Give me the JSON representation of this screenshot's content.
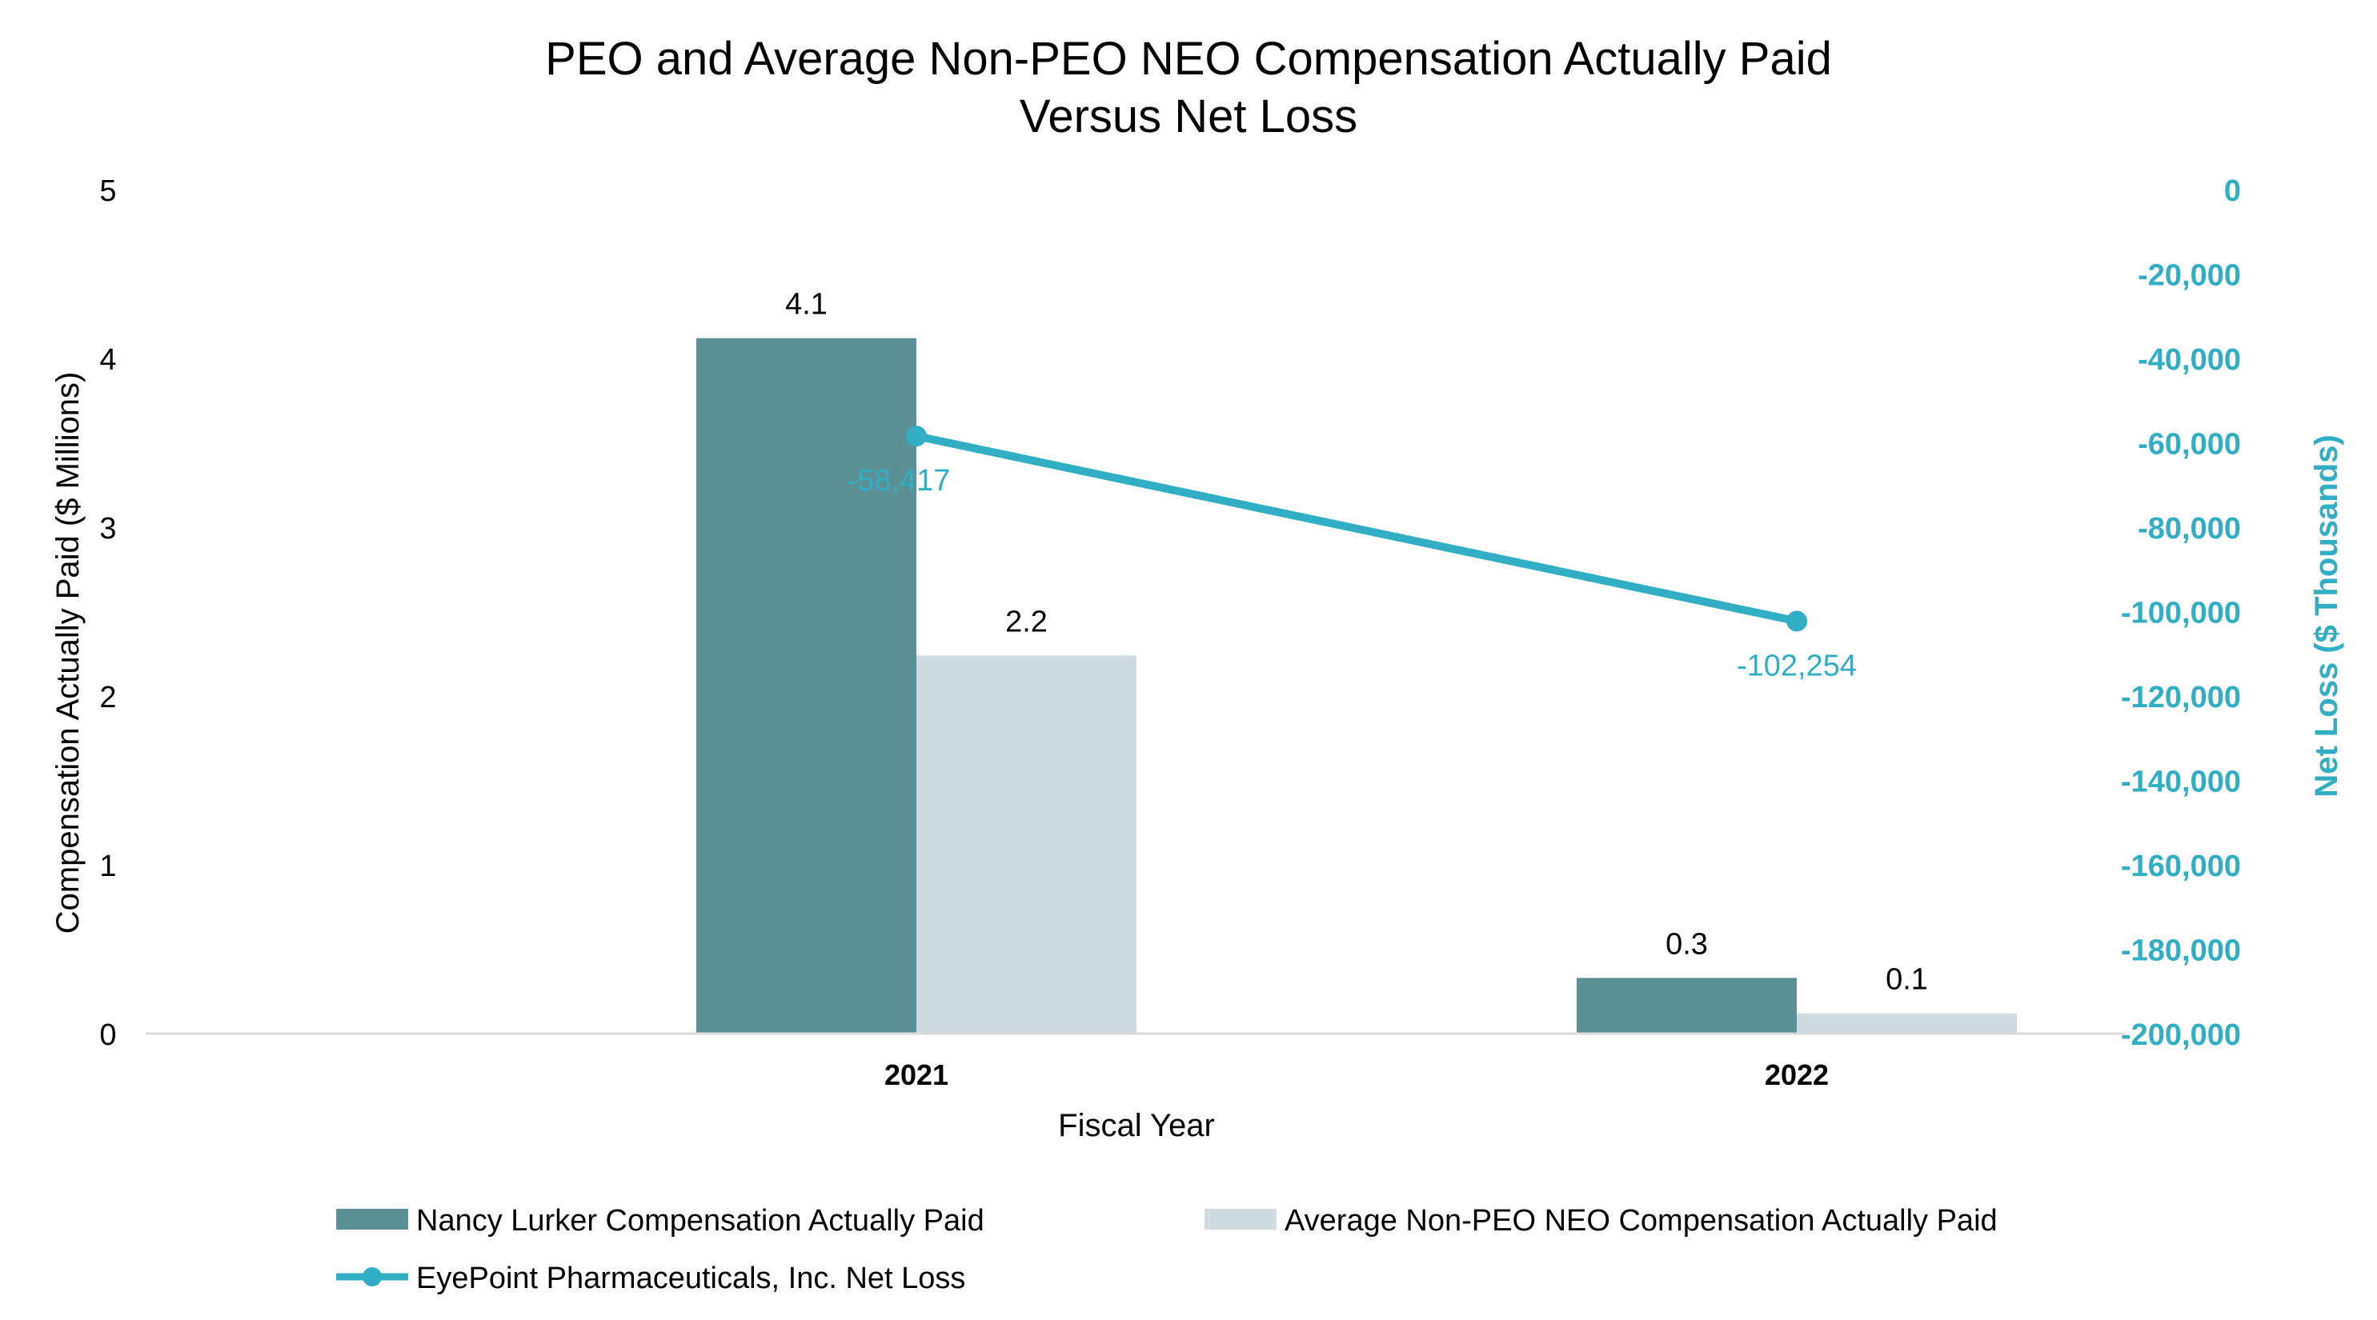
{
  "chart_data": {
    "type": "bar",
    "title_lines": [
      "PEO and Average Non-PEO NEO Compensation Actually Paid",
      "Versus Net Loss"
    ],
    "xlabel": "Fiscal Year",
    "ylabel": "Compensation Actually Paid ($ Millions)",
    "y2label": "Net Loss ($ Thousands)",
    "categories": [
      "2021",
      "2022"
    ],
    "ylim": [
      0,
      5
    ],
    "yticks": [
      "0",
      "1",
      "2",
      "3",
      "4",
      "5"
    ],
    "y2lim": [
      -200000,
      0
    ],
    "y2ticks": [
      "0",
      "-20,000",
      "-40,000",
      "-60,000",
      "-80,000",
      "-100,000",
      "-120,000",
      "-140,000",
      "-160,000",
      "-180,000",
      "-200,000"
    ],
    "grid": false,
    "legend_position": "bottom",
    "series": [
      {
        "name": "Nancy Lurker Compensation Actually Paid",
        "kind": "bar",
        "axis": "left",
        "color": "#5b9097",
        "values": [
          4.12,
          0.33
        ],
        "labels": [
          "4.1",
          "0.3"
        ]
      },
      {
        "name": "Average Non-PEO NEO Compensation Actually Paid",
        "kind": "bar",
        "axis": "left",
        "color": "#cfdbe0",
        "values": [
          2.24,
          0.12
        ],
        "labels": [
          "2.2",
          "0.1"
        ]
      },
      {
        "name": "EyePoint Pharmaceuticals, Inc. Net Loss",
        "kind": "line",
        "axis": "right",
        "color": "#31aec3",
        "values": [
          -58417,
          -102254
        ],
        "labels": [
          "-58,417",
          "-102,254"
        ]
      }
    ]
  }
}
